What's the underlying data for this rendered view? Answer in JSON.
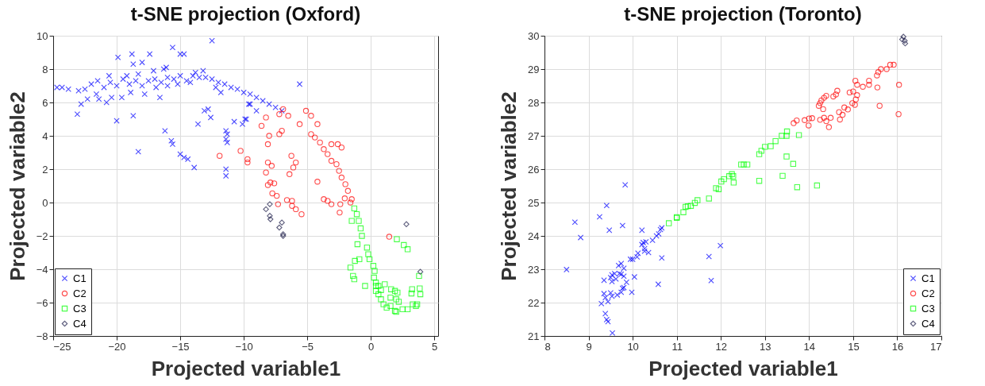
{
  "chart_data": [
    {
      "type": "scatter",
      "title": "t-SNE projection (Oxford)",
      "xlabel": "Projected variable1",
      "ylabel": "Projected variable2",
      "xlim": [
        -25,
        5.3
      ],
      "ylim": [
        -8,
        10
      ],
      "xticks": [
        -25,
        -20,
        -15,
        -10,
        -5,
        0,
        5
      ],
      "yticks": [
        -8,
        -6,
        -4,
        -2,
        0,
        2,
        4,
        6,
        8,
        10
      ],
      "grid": true,
      "legend": "bottom left",
      "series": [
        {
          "name": "C1",
          "color": "#0000ff",
          "marker": "cross",
          "x": [
            -24.7,
            -24.3,
            -23.8,
            -23,
            -22.5,
            -22,
            -21.5,
            -21,
            -20.5,
            -20,
            -19.5,
            -19,
            -18.5,
            -18,
            -17.5,
            -17,
            -16.5,
            -16,
            -15.5,
            -15,
            -14.5,
            -14,
            -13.5,
            -13,
            -12.5,
            -12,
            -11.5,
            -11,
            -10.5,
            -10,
            -9.5,
            -9,
            -8.5,
            -8,
            -7.5,
            -7,
            -22.3,
            -21.6,
            -20.8,
            -19.6,
            -18.9,
            -17.8,
            -16.9,
            -16,
            -15.2,
            -14.2,
            -13.8,
            -13.2,
            -12.2,
            -11.8,
            -20.6,
            -19.2,
            -18.3,
            -17.1,
            -16.3,
            -19.9,
            -18.8,
            -18.7,
            -18,
            -17.4,
            -15.6,
            -15,
            -14.7,
            -12.5,
            -16.1,
            -22.8,
            -23.1,
            -20,
            -18.7,
            -16.6,
            -21.4,
            -20.4,
            -16.2,
            -15.7,
            -15.6,
            -18.3,
            -15,
            -14.7,
            -14.4,
            -13.9,
            -13.6,
            -13.1,
            -12.8,
            -12.6,
            -11.4,
            -11.4,
            -11.4,
            -11.3,
            -11.4,
            -11.3,
            -10.75,
            -10.1,
            -9.9,
            -9.6,
            -5.6,
            -9.5,
            -9,
            -9.8
          ],
          "values": [
            6.9,
            6.9,
            6.8,
            6.7,
            6.8,
            7.1,
            7.3,
            6.9,
            7.2,
            7,
            7.4,
            7.1,
            7.3,
            7,
            7.3,
            7.4,
            7.2,
            7.5,
            7.4,
            7.6,
            7.3,
            7.6,
            7.5,
            7.5,
            7.4,
            7.2,
            7.1,
            6.9,
            6.8,
            6.6,
            6.5,
            6.3,
            6.1,
            5.9,
            5.7,
            5.5,
            6.2,
            6.5,
            6,
            6.3,
            6.6,
            6.5,
            6.9,
            7,
            7.1,
            7.2,
            7.8,
            7.9,
            6.9,
            6.6,
            7.6,
            7.6,
            7.7,
            7.9,
            8,
            8.7,
            8.9,
            8.3,
            8.4,
            8.9,
            9.3,
            8.9,
            8.9,
            9.7,
            8.1,
            5.9,
            5.3,
            4.9,
            5.2,
            6.3,
            6.2,
            6.3,
            4.3,
            3.7,
            3.5,
            3.05,
            2.9,
            2.7,
            2.6,
            2.1,
            4.7,
            5.5,
            5.6,
            5.1,
            2,
            1.6,
            4.3,
            4.1,
            3.8,
            3.6,
            4.85,
            4.7,
            5,
            5.9,
            7.1,
            5.9,
            5.5,
            5
          ]
        },
        {
          "name": "C2",
          "color": "#ff0000",
          "marker": "circle",
          "x": [
            -11.9,
            -10.25,
            -9.7,
            -9.7,
            -6.9,
            -6.5,
            -5.6,
            -4.7,
            -4.4,
            -4,
            -3.7,
            -3.4,
            -3.1,
            -2.7,
            -2.5,
            -2.3,
            -2,
            -1.8,
            -5.1,
            -4.7,
            -4.2,
            -3.1,
            -2.6,
            -2.3,
            -8.25,
            -8.6,
            -8,
            -8.1,
            -7.2,
            -7,
            -7.2,
            -6.25,
            -5.9,
            -6.1,
            -6.4,
            -8.1,
            -7.8,
            -8.25,
            -4.2,
            -8.1,
            -7.9,
            -7.6,
            -7.75,
            -7.4,
            -7.3,
            -6.6,
            -6.2,
            -6.2,
            -5.9,
            -5.45,
            -3.7,
            -3.4,
            -3.1,
            -2.4,
            -2.45,
            -2.05,
            -1.6,
            -1.5,
            1.45
          ],
          "values": [
            2.8,
            3.1,
            2.6,
            2.4,
            5.6,
            5.2,
            4.7,
            4.1,
            3.9,
            3.6,
            3.2,
            2.9,
            2.5,
            2.3,
            1.9,
            1.5,
            1.1,
            0.7,
            5.5,
            5.2,
            4.7,
            3.5,
            3.5,
            3.3,
            5.1,
            4.6,
            4,
            3.5,
            4.1,
            4.3,
            5.3,
            2.8,
            2.4,
            2.1,
            1.7,
            2.4,
            2.2,
            1.8,
            1.25,
            1.05,
            1.2,
            1.15,
            0.55,
            0.4,
            -0.1,
            0.15,
            0.1,
            -0.2,
            -0.4,
            -0.7,
            0.2,
            0.1,
            -0.1,
            -0.1,
            -0.6,
            0.25,
            0,
            0.2,
            -2.05
          ]
        },
        {
          "name": "C3",
          "color": "#00ff00",
          "marker": "square",
          "x": [
            -1.3,
            -1.1,
            -0.95,
            -0.8,
            -0.7,
            -0.3,
            -0.2,
            -0.1,
            0.2,
            0.3,
            0.25,
            0.4,
            0.6,
            0.8,
            0.6,
            0.8,
            1.25,
            1.9,
            2,
            2.5,
            2.9,
            3.3,
            3.55,
            1.1,
            1.6,
            1.9,
            2.1,
            1.55,
            2,
            2.2,
            1.55,
            1,
            0.4,
            0.4,
            -1.5,
            -1.05,
            -1.25,
            -0.9,
            -1.6,
            -1.4,
            -1.3,
            -0.45,
            2.05,
            2.6,
            2.9,
            3.8,
            3.25,
            3.2,
            3.85,
            3.9,
            3.65
          ],
          "values": [
            -0.35,
            -0.7,
            -1.1,
            -1.55,
            -2,
            -2.7,
            -3.1,
            -3.4,
            -3.8,
            -4.1,
            -4.5,
            -4.8,
            -5,
            -5.25,
            -5.5,
            -5.8,
            -6.3,
            -6.5,
            -6.55,
            -6.4,
            -6.4,
            -6.1,
            -6.2,
            -4.9,
            -5.2,
            -5.3,
            -5.4,
            -5.7,
            -5.8,
            -5.95,
            -6.2,
            -6.1,
            -5.3,
            -5,
            -1.1,
            -2.5,
            -3.5,
            -3.4,
            -3.9,
            -4.4,
            -4.6,
            -5,
            -2.2,
            -2.55,
            -2.8,
            -4.4,
            -5.2,
            -5.45,
            -5.15,
            -5.5,
            -6.1
          ]
        },
        {
          "name": "C4",
          "color": "#1c1c48",
          "marker": "diamond",
          "x": [
            -8.25,
            -7.95,
            -7.95,
            -7.9,
            -7,
            -7.2,
            -6.9,
            -6.9,
            2.8,
            3.9
          ],
          "values": [
            -0.4,
            -0.1,
            -0.8,
            -1,
            -1.2,
            -1.5,
            -1.9,
            -2,
            -1.3,
            -4.15
          ]
        }
      ]
    },
    {
      "type": "scatter",
      "title": "t-SNE projection (Toronto)",
      "xlabel": "Projected variable1",
      "ylabel": "Projected variable2",
      "xlim": [
        8,
        17
      ],
      "ylim": [
        21,
        30
      ],
      "xticks": [
        8,
        9,
        10,
        11,
        12,
        13,
        14,
        15,
        16,
        17
      ],
      "yticks": [
        21,
        22,
        23,
        24,
        25,
        26,
        27,
        28,
        29,
        30
      ],
      "grid": true,
      "legend": "bottom right",
      "series": [
        {
          "name": "C1",
          "color": "#0000ff",
          "marker": "cross",
          "x": [
            8.5,
            8.69,
            8.82,
            9.25,
            9.41,
            9.47,
            9.77,
            9.83,
            10.21,
            9.35,
            9.29,
            9.38,
            9.41,
            9.44,
            9.54,
            9.35,
            9.5,
            9.53,
            9.44,
            9.38,
            9.65,
            9.74,
            9.77,
            9.8,
            9.5,
            9.53,
            9.59,
            9.53,
            9.62,
            9.7,
            9.74,
            9.8,
            9.86,
            9.8,
            9.68,
            9.74,
            9.98,
            10.04,
            9.95,
            10,
            10.1,
            10.12,
            10.21,
            10.24,
            10.3,
            10.27,
            10.27,
            10.36,
            10.45,
            10.54,
            10.59,
            10.63,
            10.66,
            10.66,
            10.58,
            11.73,
            11.78,
            11.99
          ],
          "values": [
            22.99,
            24.41,
            23.95,
            24.57,
            24.91,
            24.17,
            24.31,
            25.53,
            24.17,
            22.67,
            21.97,
            21.67,
            21.49,
            21.43,
            21.09,
            22.27,
            22.29,
            22.19,
            22.03,
            22.15,
            22.23,
            22.31,
            22.43,
            22.45,
            22.75,
            22.83,
            22.87,
            22.63,
            22.71,
            22.87,
            22.85,
            22.79,
            22.61,
            23.03,
            23.11,
            23.17,
            22.31,
            22.77,
            23.3,
            23.3,
            23.37,
            23.48,
            23.74,
            23.8,
            23.82,
            23.62,
            23.54,
            23.5,
            23.87,
            24,
            24.06,
            24.19,
            24.24,
            23.34,
            22.55,
            23.38,
            22.66,
            23.71
          ]
        },
        {
          "name": "C2",
          "color": "#ff0000",
          "marker": "circle",
          "x": [
            13.65,
            13.72,
            13.9,
            14,
            14.07,
            13.99,
            14.25,
            14.34,
            14.39,
            14.45,
            14.49,
            14.22,
            14.25,
            14.28,
            14.32,
            14.34,
            14.39,
            14.55,
            14.61,
            14.64,
            14.68,
            14.7,
            14.76,
            14.8,
            14.88,
            14.92,
            15,
            14.98,
            15.04,
            15.06,
            15.09,
            15.05,
            15.09,
            15.22,
            15.36,
            15.36,
            15.54,
            15.57,
            15.63,
            15.55,
            15.6,
            15.76,
            15.84,
            15.92,
            16.04,
            16.03
          ],
          "values": [
            27.38,
            27.46,
            27.47,
            27.52,
            27.53,
            27.31,
            27.48,
            27.54,
            27.44,
            27.26,
            27.54,
            27.9,
            27.98,
            28.06,
            27.8,
            28.14,
            28.2,
            28.18,
            28.24,
            28.35,
            27.71,
            27.49,
            27.63,
            27.85,
            27.79,
            28.3,
            28.33,
            27.98,
            27.93,
            28.09,
            28.22,
            28.65,
            28.53,
            28.47,
            28.65,
            28.53,
            28.81,
            28.91,
            29,
            28.45,
            27.9,
            29,
            29.13,
            29.13,
            28.53,
            27.65
          ]
        },
        {
          "name": "C3",
          "color": "#00ff00",
          "marker": "square",
          "x": [
            13.5,
            13.49,
            13.38,
            13.77,
            13.24,
            13.13,
            13,
            12.92,
            12.87,
            13.49,
            13.64,
            12.6,
            12.52,
            13.4,
            13.73,
            14.18,
            12.87,
            10.82,
            11,
            11,
            11.15,
            11.2,
            11.25,
            11.32,
            11.41,
            11.47,
            11.73,
            11.89,
            11.95,
            12.01,
            12.07,
            12.19,
            12.25,
            12.28,
            12.29,
            12.46
          ],
          "values": [
            27.13,
            27,
            27,
            27.02,
            26.84,
            26.69,
            26.67,
            26.55,
            26.45,
            26.38,
            26.16,
            26.14,
            26.14,
            25.8,
            25.46,
            25.51,
            25.65,
            24.38,
            24.56,
            24.54,
            24.71,
            24.87,
            24.89,
            24.9,
            24.99,
            25.07,
            25.12,
            25.43,
            25.4,
            25.63,
            25.7,
            25.79,
            25.85,
            25.79,
            25.6,
            26.14
          ]
        },
        {
          "name": "C4",
          "color": "#1c1c48",
          "marker": "diamond",
          "x": [
            16.11,
            16.17,
            16.14,
            16.18
          ],
          "values": [
            29.89,
            29.85,
            29.97,
            29.77
          ]
        }
      ]
    }
  ]
}
